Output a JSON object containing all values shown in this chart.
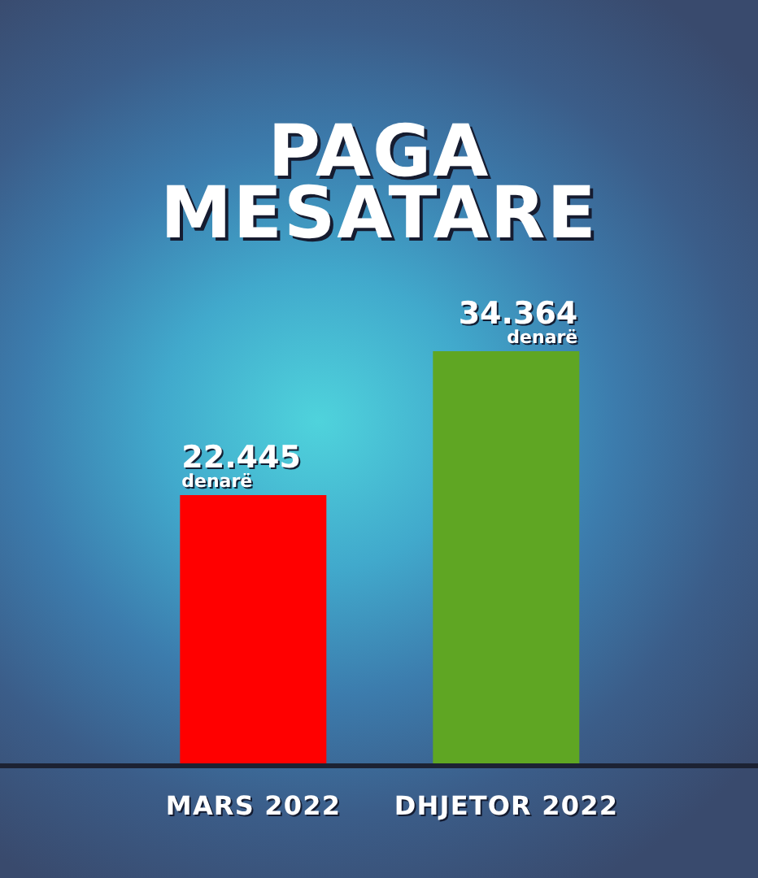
{
  "chart_data": {
    "type": "bar",
    "title": "PAGA MESATARE",
    "categories": [
      "MARS 2022",
      "DHJETOR 2022"
    ],
    "values": [
      22445,
      34364
    ],
    "colors": [
      "#ff0000",
      "#5fa623"
    ],
    "value_labels": [
      "22.445 denarë",
      "34.364 denarë"
    ]
  }
}
